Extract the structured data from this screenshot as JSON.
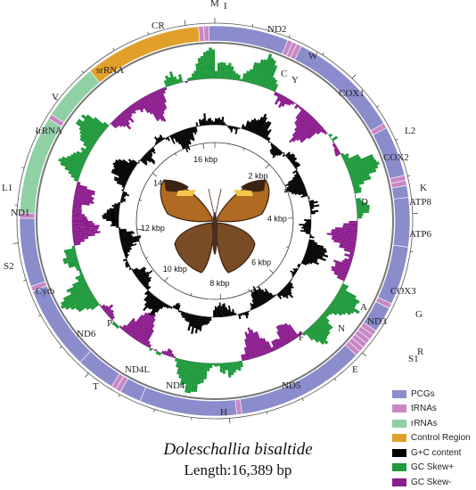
{
  "species": "Doleschallia bisaltide",
  "length_text": "Length:16,389 bp",
  "colors": {
    "pcg": "#8a8ccb",
    "trna": "#c888c4",
    "rrna": "#8fd0a4",
    "control": "#e1a02c",
    "gc_content": "#000000",
    "gc_skew_plus": "#1f9a3c",
    "gc_skew_minus": "#8c1d8e"
  },
  "legend": [
    {
      "label": "PCGs",
      "color": "#8a8ccb"
    },
    {
      "label": "tRNAs",
      "color": "#c888c4"
    },
    {
      "label": "rRNAs",
      "color": "#8fd0a4"
    },
    {
      "label": "Control Region",
      "color": "#e1a02c"
    },
    {
      "label": "G+C content",
      "color": "#000000"
    },
    {
      "label": "GC Skew+",
      "color": "#1f9a3c"
    },
    {
      "label": "GC Skew-",
      "color": "#8c1d8e"
    }
  ],
  "kbp_labels": [
    "2 kbp",
    "4 kbp",
    "6 kbp",
    "8 kbp",
    "10 kbp",
    "12 kbp",
    "14 kbp",
    "16 kbp"
  ],
  "genes": [
    {
      "label": "M",
      "type": "trna",
      "start": -220,
      "end": -150
    },
    {
      "label": "I",
      "type": "trna",
      "start": -150,
      "end": -80
    },
    {
      "label": "ND2",
      "type": "pcg",
      "start": -80,
      "end": 1000
    },
    {
      "label": "W",
      "type": "trna",
      "start": 1000,
      "end": 1070
    },
    {
      "label": "C",
      "type": "trna",
      "start": 1070,
      "end": 1130
    },
    {
      "label": "Y",
      "type": "trna",
      "start": 1130,
      "end": 1200
    },
    {
      "label": "COX1",
      "type": "pcg",
      "start": 1200,
      "end": 2730
    },
    {
      "label": "L2",
      "type": "trna",
      "start": 2730,
      "end": 2800
    },
    {
      "label": "COX2",
      "type": "pcg",
      "start": 2800,
      "end": 3480
    },
    {
      "label": "K",
      "type": "trna",
      "start": 3480,
      "end": 3550
    },
    {
      "label": "D",
      "type": "trna",
      "start": 3550,
      "end": 3620
    },
    {
      "label": "ATP8",
      "type": "pcg",
      "start": 3620,
      "end": 3780
    },
    {
      "label": "ATP6",
      "type": "pcg",
      "start": 3780,
      "end": 4450
    },
    {
      "label": "COX3",
      "type": "pcg",
      "start": 4450,
      "end": 5240
    },
    {
      "label": "G",
      "type": "trna",
      "start": 5240,
      "end": 5310
    },
    {
      "label": "ND3",
      "type": "pcg",
      "start": 5310,
      "end": 5660
    },
    {
      "label": "A",
      "type": "trna",
      "start": 5660,
      "end": 5730
    },
    {
      "label": "R",
      "type": "trna",
      "start": 5730,
      "end": 5800
    },
    {
      "label": "N",
      "type": "trna",
      "start": 5800,
      "end": 5870
    },
    {
      "label": "S1",
      "type": "trna",
      "start": 5870,
      "end": 5940
    },
    {
      "label": "E",
      "type": "trna",
      "start": 5940,
      "end": 6010
    },
    {
      "label": "F",
      "type": "trna",
      "start": 6010,
      "end": 6080
    },
    {
      "label": "ND5",
      "type": "pcg",
      "start": 6080,
      "end": 7830
    },
    {
      "label": "H",
      "type": "trna",
      "start": 7830,
      "end": 7900
    },
    {
      "label": "ND4",
      "type": "pcg",
      "start": 7900,
      "end": 9220
    },
    {
      "label": "ND4L",
      "type": "pcg",
      "start": 9220,
      "end": 9510
    },
    {
      "label": "T",
      "type": "trna",
      "start": 9510,
      "end": 9580
    },
    {
      "label": "P",
      "type": "trna",
      "start": 9580,
      "end": 9650
    },
    {
      "label": "ND6",
      "type": "pcg",
      "start": 9650,
      "end": 10180
    },
    {
      "label": "Cytb",
      "type": "pcg",
      "start": 10180,
      "end": 11330
    },
    {
      "label": "S2",
      "type": "trna",
      "start": 11330,
      "end": 11400
    },
    {
      "label": "ND1",
      "type": "pcg",
      "start": 11400,
      "end": 12330
    },
    {
      "label": "L1",
      "type": "trna",
      "start": 12330,
      "end": 12400
    },
    {
      "label": "lrRNA",
      "type": "rrna",
      "start": 12400,
      "end": 13730
    },
    {
      "label": "V",
      "type": "trna",
      "start": 13730,
      "end": 13800
    },
    {
      "label": "srRNA",
      "type": "rrna",
      "start": 13800,
      "end": 14580
    },
    {
      "label": "CR",
      "type": "control",
      "start": 14580,
      "end": 16169
    }
  ]
}
